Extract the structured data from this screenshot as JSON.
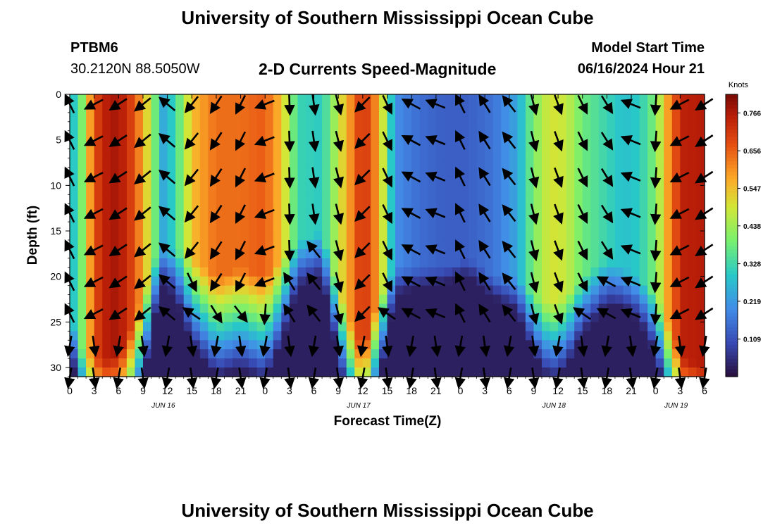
{
  "header": {
    "title_top": "University of Southern Mississippi Ocean Cube",
    "title_bottom": "University of Southern Mississippi Ocean Cube",
    "station_id": "PTBM6",
    "station_coords": "30.2120N  88.5050W",
    "plot_title": "2-D Currents Speed-Magnitude",
    "model_start_label": "Model Start Time",
    "model_start_value": "06/16/2024 Hour 21"
  },
  "chart_data": {
    "type": "heatmap",
    "title": "2-D Currents Speed-Magnitude",
    "xlabel": "Forecast Time(Z)",
    "ylabel": "Depth (ft)",
    "colorbar_label": "Knots",
    "colorbar_ticks": [
      "0.766",
      "0.656",
      "0.547",
      "0.438",
      "0.328",
      "0.219",
      "0.109"
    ],
    "colorbar_values": [
      0.766,
      0.656,
      0.547,
      0.438,
      0.328,
      0.219,
      0.109
    ],
    "color_range": [
      0.0,
      0.82
    ],
    "x_range_hours": [
      0,
      78
    ],
    "y_range_ft": [
      0,
      31
    ],
    "x_ticks": [
      "0",
      "3",
      "6",
      "9",
      "12",
      "15",
      "18",
      "21",
      "0",
      "3",
      "6",
      "9",
      "12",
      "15",
      "18",
      "21",
      "0",
      "3",
      "6",
      "9",
      "12",
      "15",
      "18",
      "21",
      "0",
      "3",
      "6"
    ],
    "y_ticks": [
      "0",
      "5",
      "10",
      "15",
      "20",
      "25",
      "30"
    ],
    "y_tick_values": [
      0,
      5,
      10,
      15,
      20,
      25,
      30
    ],
    "date_labels": [
      {
        "label": "JUN 16",
        "hour": 11.5
      },
      {
        "label": "JUN 17",
        "hour": 35.5
      },
      {
        "label": "JUN 18",
        "hour": 59.5
      },
      {
        "label": "JUN 19",
        "hour": 74.5
      }
    ],
    "speed_profile": {
      "hours": [
        0,
        1.5,
        3,
        5,
        7,
        9,
        10.5,
        11.5,
        13,
        15,
        18,
        21,
        24,
        26,
        28,
        31,
        34,
        36,
        38,
        40,
        43,
        46,
        49,
        52,
        55,
        57,
        59,
        61,
        63,
        66,
        68,
        70,
        72,
        74,
        75.5,
        78
      ],
      "surface": [
        0.25,
        0.4,
        0.68,
        0.78,
        0.74,
        0.58,
        0.38,
        0.25,
        0.32,
        0.55,
        0.64,
        0.64,
        0.66,
        0.55,
        0.32,
        0.3,
        0.56,
        0.73,
        0.58,
        0.2,
        0.15,
        0.13,
        0.13,
        0.16,
        0.24,
        0.4,
        0.5,
        0.48,
        0.38,
        0.32,
        0.28,
        0.3,
        0.4,
        0.65,
        0.75,
        0.76
      ],
      "deep_extent_ft": [
        24,
        28,
        29,
        29,
        27,
        22,
        18,
        17,
        17,
        18,
        20,
        19,
        20,
        18,
        16,
        15,
        24,
        28,
        22,
        19,
        19,
        19,
        18,
        20,
        20,
        22,
        23,
        22,
        20,
        18,
        19,
        20,
        22,
        26,
        29,
        30
      ]
    },
    "arrows": {
      "hours": [
        0,
        3,
        6,
        9,
        12,
        15,
        18,
        21,
        24,
        27,
        30,
        33,
        36,
        39,
        42,
        45,
        48,
        51,
        54,
        57,
        60,
        63,
        66,
        69,
        72,
        75,
        78
      ],
      "depths": [
        0,
        4,
        8,
        12,
        16,
        19.5,
        23,
        26.5,
        30
      ]
    }
  }
}
